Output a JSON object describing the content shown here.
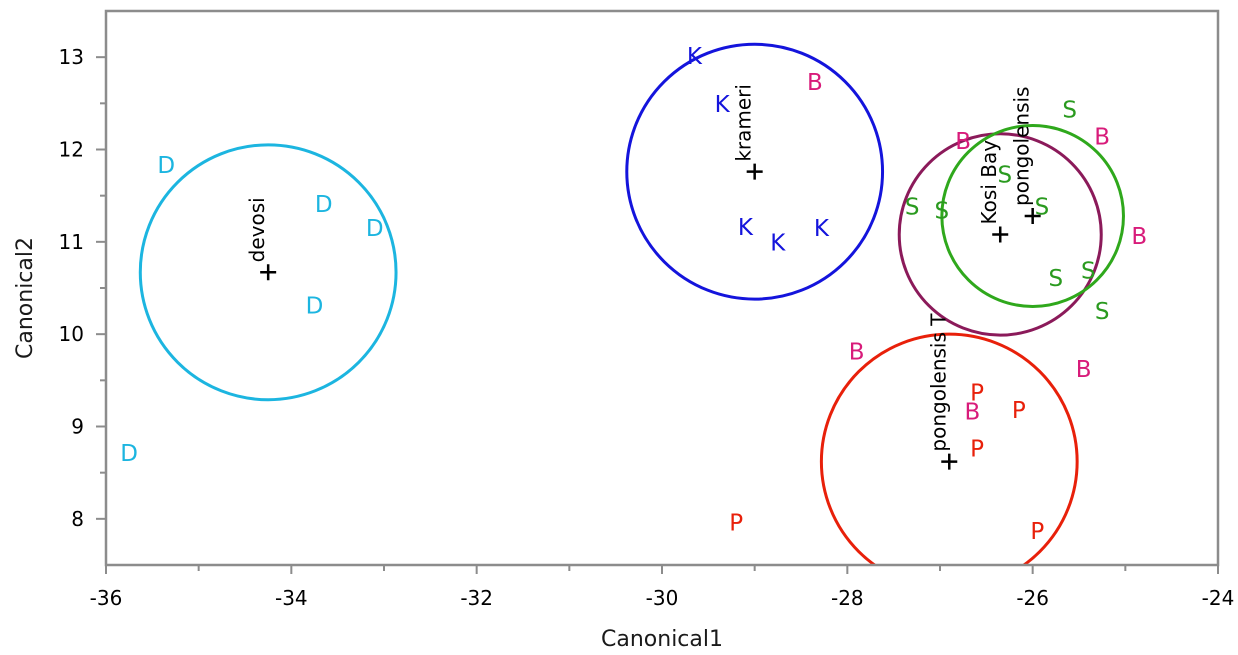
{
  "chart_data": {
    "type": "scatter",
    "xlabel": "Canonical1",
    "ylabel": "Canonical2",
    "xlim": [
      -36,
      -24
    ],
    "ylim": [
      7.5,
      13.5
    ],
    "x_ticks": [
      -36,
      -34,
      -32,
      -30,
      -28,
      -26,
      -24
    ],
    "y_ticks": [
      8,
      9,
      10,
      11,
      12,
      13
    ],
    "grid": false,
    "legend": "none",
    "series": [
      {
        "marker": "D",
        "color": "#1cb5e0",
        "points": [
          {
            "x": -35.35,
            "y": 11.82
          },
          {
            "x": -33.65,
            "y": 11.4
          },
          {
            "x": -33.1,
            "y": 11.14
          },
          {
            "x": -33.75,
            "y": 10.3
          },
          {
            "x": -35.75,
            "y": 8.7
          }
        ],
        "centroid": {
          "x": -34.25,
          "y": 10.67,
          "label": "devosi"
        },
        "circle_radius": 1.38
      },
      {
        "marker": "K",
        "color": "#1414dc",
        "points": [
          {
            "x": -29.65,
            "y": 13.0
          },
          {
            "x": -29.35,
            "y": 12.48
          },
          {
            "x": -29.1,
            "y": 11.15
          },
          {
            "x": -28.75,
            "y": 10.98
          },
          {
            "x": -28.28,
            "y": 11.14
          }
        ],
        "centroid": {
          "x": -29.0,
          "y": 11.76,
          "label": "krameri"
        },
        "circle_radius": 1.38
      },
      {
        "marker": "B",
        "color": "#d81b7a",
        "points": [
          {
            "x": -28.35,
            "y": 12.72
          },
          {
            "x": -26.75,
            "y": 12.08
          },
          {
            "x": -25.25,
            "y": 12.13
          },
          {
            "x": -24.85,
            "y": 11.05
          },
          {
            "x": -27.9,
            "y": 9.8
          },
          {
            "x": -25.45,
            "y": 9.61
          },
          {
            "x": -26.65,
            "y": 9.15
          }
        ],
        "centroid": {
          "x": -26.35,
          "y": 11.08,
          "label": "Kosi Bay"
        },
        "circle_radius": 1.09,
        "circle_color": "#8b1a5a"
      },
      {
        "marker": "S",
        "color": "#2a9a1f",
        "points": [
          {
            "x": -25.6,
            "y": 12.42
          },
          {
            "x": -26.3,
            "y": 11.72
          },
          {
            "x": -27.3,
            "y": 11.37
          },
          {
            "x": -26.98,
            "y": 11.33
          },
          {
            "x": -25.9,
            "y": 11.37
          },
          {
            "x": -25.75,
            "y": 10.6
          },
          {
            "x": -25.4,
            "y": 10.68
          },
          {
            "x": -25.25,
            "y": 10.24
          }
        ],
        "centroid": {
          "x": -26.0,
          "y": 11.28,
          "label": "pongolensis"
        },
        "circle_radius": 0.98,
        "circle_color": "#2fa81c"
      },
      {
        "marker": "P",
        "color": "#e8200a",
        "points": [
          {
            "x": -26.6,
            "y": 9.36
          },
          {
            "x": -26.15,
            "y": 9.17
          },
          {
            "x": -26.6,
            "y": 8.75
          },
          {
            "x": -29.2,
            "y": 7.95
          },
          {
            "x": -25.95,
            "y": 7.86
          }
        ],
        "centroid": {
          "x": -26.9,
          "y": 8.62,
          "label": "pongolensis T"
        },
        "circle_radius": 1.38
      }
    ]
  }
}
